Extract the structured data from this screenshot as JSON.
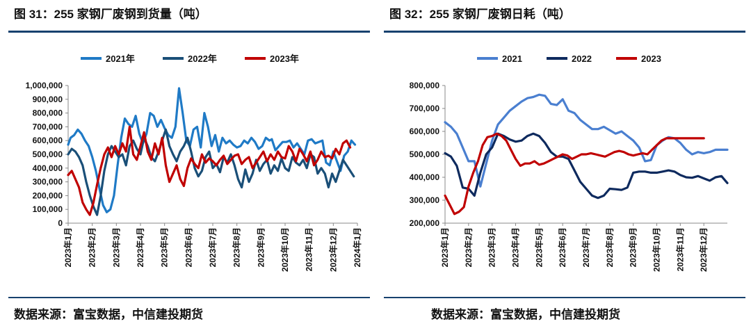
{
  "header": {
    "left_title": "图 31：255 家钢厂废钢到货量（吨）",
    "right_title": "图 32：255 家钢厂废钢日耗（吨）"
  },
  "footer": {
    "left_source": "数据来源：富宝数据，中信建投期货",
    "right_source": "数据来源：富宝数据，中信建投期货"
  },
  "charts": [
    {
      "type": "line",
      "title": "图 31：255 家钢厂废钢到货量（吨）",
      "ylim": [
        0,
        1000000
      ],
      "yticks": [
        0,
        100000,
        200000,
        300000,
        400000,
        500000,
        600000,
        700000,
        800000,
        900000,
        1000000
      ],
      "ytick_labels": [
        "0",
        "100,000",
        "200,000",
        "300,000",
        "400,000",
        "500,000",
        "600,000",
        "700,000",
        "800,000",
        "900,000",
        "1,000,000"
      ],
      "xlim": [
        0,
        12
      ],
      "x_tick_labels": [
        "2023年1月",
        "2023年2月",
        "2023年3月",
        "2023年4月",
        "2023年5月",
        "2023年6月",
        "2023年7月",
        "2023年8月",
        "2023年9月",
        "2023年10月",
        "2023年11月",
        "2023年12月",
        "2024年1月"
      ],
      "legend": "top",
      "series": [
        {
          "name": "2021年",
          "color": "#1f7ac6",
          "x": [
            0,
            0.1,
            0.25,
            0.4,
            0.55,
            0.7,
            0.85,
            1.0,
            1.15,
            1.3,
            1.45,
            1.6,
            1.75,
            1.9,
            2.05,
            2.2,
            2.35,
            2.5,
            2.65,
            2.8,
            2.95,
            3.1,
            3.25,
            3.4,
            3.55,
            3.7,
            3.85,
            4.0,
            4.15,
            4.3,
            4.45,
            4.6,
            4.75,
            4.9,
            5.05,
            5.2,
            5.35,
            5.5,
            5.65,
            5.8,
            5.95,
            6.1,
            6.25,
            6.4,
            6.55,
            6.7,
            6.85,
            7.0,
            7.15,
            7.3,
            7.45,
            7.6,
            7.75,
            7.9,
            8.05,
            8.2,
            8.35,
            8.45,
            8.6,
            8.75,
            8.9,
            9.05,
            9.2,
            9.35,
            9.5,
            9.65,
            9.8,
            9.95,
            10.1,
            10.25,
            10.4,
            10.55,
            10.7,
            10.85,
            11.0,
            11.15,
            11.3,
            11.45,
            11.6,
            11.75,
            11.9
          ],
          "values": [
            570000,
            620000,
            640000,
            680000,
            650000,
            600000,
            560000,
            480000,
            380000,
            250000,
            130000,
            80000,
            100000,
            200000,
            420000,
            620000,
            760000,
            720000,
            700000,
            780000,
            650000,
            580000,
            650000,
            800000,
            780000,
            700000,
            750000,
            690000,
            640000,
            620000,
            700000,
            980000,
            800000,
            600000,
            560000,
            680000,
            700000,
            550000,
            800000,
            700000,
            560000,
            640000,
            520000,
            620000,
            580000,
            600000,
            570000,
            550000,
            560000,
            600000,
            580000,
            620000,
            590000,
            540000,
            560000,
            620000,
            600000,
            610000,
            530000,
            560000,
            590000,
            590000,
            600000,
            550000,
            580000,
            540000,
            500000,
            600000,
            610000,
            580000,
            590000,
            600000,
            440000,
            420000,
            520000,
            450000,
            380000,
            490000,
            520000,
            600000,
            570000
          ]
        },
        {
          "name": "2022年",
          "color": "#1a4f78",
          "x": [
            0,
            0.15,
            0.3,
            0.45,
            0.6,
            0.75,
            0.9,
            1.05,
            1.2,
            1.35,
            1.5,
            1.65,
            1.8,
            1.95,
            2.1,
            2.25,
            2.4,
            2.55,
            2.7,
            2.85,
            3.0,
            3.15,
            3.3,
            3.45,
            3.6,
            3.75,
            3.9,
            4.05,
            4.2,
            4.35,
            4.5,
            4.65,
            4.8,
            4.95,
            5.1,
            5.25,
            5.4,
            5.55,
            5.7,
            5.85,
            6.0,
            6.15,
            6.3,
            6.45,
            6.6,
            6.75,
            6.9,
            7.05,
            7.2,
            7.35,
            7.5,
            7.65,
            7.8,
            7.95,
            8.1,
            8.25,
            8.4,
            8.55,
            8.7,
            8.85,
            9.0,
            9.15,
            9.3,
            9.45,
            9.6,
            9.75,
            9.9,
            10.05,
            10.2,
            10.35,
            10.5,
            10.65,
            10.8,
            10.95,
            11.1,
            11.25,
            11.4,
            11.55,
            11.7,
            11.85
          ],
          "values": [
            500000,
            540000,
            520000,
            480000,
            420000,
            300000,
            200000,
            120000,
            60000,
            200000,
            380000,
            500000,
            560000,
            520000,
            480000,
            500000,
            420000,
            560000,
            600000,
            540000,
            500000,
            620000,
            560000,
            480000,
            450000,
            520000,
            600000,
            680000,
            560000,
            500000,
            450000,
            520000,
            560000,
            620000,
            520000,
            400000,
            340000,
            380000,
            480000,
            520000,
            400000,
            430000,
            370000,
            480000,
            440000,
            500000,
            420000,
            320000,
            260000,
            390000,
            300000,
            360000,
            460000,
            380000,
            430000,
            460000,
            360000,
            420000,
            380000,
            470000,
            400000,
            380000,
            480000,
            440000,
            420000,
            460000,
            400000,
            500000,
            480000,
            360000,
            400000,
            360000,
            260000,
            360000,
            300000,
            380000,
            460000,
            420000,
            380000,
            340000
          ]
        },
        {
          "name": "2023年",
          "color": "#c00000",
          "x": [
            0,
            0.15,
            0.3,
            0.45,
            0.6,
            0.75,
            0.9,
            1.05,
            1.2,
            1.35,
            1.5,
            1.65,
            1.8,
            1.95,
            2.1,
            2.25,
            2.4,
            2.55,
            2.7,
            2.85,
            3.0,
            3.15,
            3.3,
            3.45,
            3.6,
            3.75,
            3.9,
            4.05,
            4.2,
            4.35,
            4.5,
            4.65,
            4.8,
            4.95,
            5.1,
            5.25,
            5.4,
            5.55,
            5.7,
            5.85,
            6.0,
            6.15,
            6.3,
            6.45,
            6.6,
            6.75,
            6.9,
            7.05,
            7.2,
            7.35,
            7.5,
            7.65,
            7.8,
            7.95,
            8.1,
            8.25,
            8.4,
            8.55,
            8.7,
            8.85,
            9.0,
            9.15,
            9.3,
            9.45,
            9.6,
            9.75,
            9.9,
            10.05,
            10.2,
            10.35,
            10.5,
            10.65,
            10.8,
            10.95,
            11.1,
            11.25,
            11.4,
            11.55,
            11.7
          ],
          "values": [
            350000,
            380000,
            320000,
            260000,
            150000,
            100000,
            60000,
            150000,
            280000,
            400000,
            500000,
            550000,
            480000,
            560000,
            500000,
            580000,
            520000,
            700000,
            500000,
            460000,
            560000,
            660000,
            520000,
            460000,
            580000,
            500000,
            620000,
            420000,
            300000,
            360000,
            420000,
            320000,
            270000,
            400000,
            470000,
            430000,
            400000,
            500000,
            440000,
            470000,
            450000,
            420000,
            460000,
            490000,
            430000,
            460000,
            490000,
            500000,
            430000,
            460000,
            480000,
            400000,
            440000,
            480000,
            520000,
            450000,
            500000,
            460000,
            520000,
            480000,
            470000,
            560000,
            520000,
            450000,
            540000,
            500000,
            450000,
            520000,
            420000,
            460000,
            520000,
            480000,
            490000,
            470000,
            540000,
            500000,
            580000,
            600000,
            550000
          ]
        }
      ]
    },
    {
      "type": "line",
      "title": "图 32：255 家钢厂废钢日耗（吨）",
      "ylim": [
        200000,
        800000
      ],
      "yticks": [
        200000,
        300000,
        400000,
        500000,
        600000,
        700000,
        800000
      ],
      "ytick_labels": [
        "200,000",
        "300,000",
        "400,000",
        "500,000",
        "600,000",
        "700,000",
        "800,000"
      ],
      "xlim": [
        0,
        12
      ],
      "x_tick_labels": [
        "2023年1月",
        "2023年2月",
        "2023年3月",
        "2023年4月",
        "2023年5月",
        "2023年6月",
        "2023年7月",
        "2023年8月",
        "2023年9月",
        "2023年10月",
        "2023年11月",
        "2023年12月"
      ],
      "legend": "top",
      "series": [
        {
          "name": "2021",
          "color": "#4a7fd0",
          "x": [
            0,
            0.25,
            0.5,
            0.75,
            1.0,
            1.25,
            1.5,
            1.75,
            2.0,
            2.25,
            2.5,
            2.75,
            3.0,
            3.25,
            3.5,
            3.75,
            4.0,
            4.25,
            4.5,
            4.75,
            5.0,
            5.25,
            5.5,
            5.75,
            6.0,
            6.25,
            6.5,
            6.75,
            7.0,
            7.25,
            7.5,
            7.75,
            8.0,
            8.25,
            8.5,
            8.75,
            9.0,
            9.25,
            9.5,
            9.75,
            10.0,
            10.25,
            10.5,
            10.75,
            11.0,
            11.25,
            11.5,
            11.75,
            12.0
          ],
          "values": [
            640000,
            620000,
            590000,
            530000,
            470000,
            470000,
            360000,
            460000,
            560000,
            630000,
            660000,
            690000,
            710000,
            730000,
            745000,
            750000,
            760000,
            755000,
            720000,
            715000,
            740000,
            690000,
            680000,
            650000,
            630000,
            610000,
            610000,
            620000,
            605000,
            590000,
            600000,
            580000,
            560000,
            530000,
            470000,
            475000,
            540000,
            560000,
            575000,
            570000,
            550000,
            520000,
            500000,
            510000,
            505000,
            510000,
            520000,
            520000,
            520000
          ]
        },
        {
          "name": "2022",
          "color": "#0e2a5e",
          "x": [
            0,
            0.25,
            0.5,
            0.75,
            1.0,
            1.25,
            1.5,
            1.75,
            2.0,
            2.25,
            2.5,
            2.75,
            3.0,
            3.25,
            3.5,
            3.75,
            4.0,
            4.25,
            4.5,
            4.75,
            5.0,
            5.25,
            5.5,
            5.75,
            6.0,
            6.25,
            6.5,
            6.75,
            7.0,
            7.25,
            7.5,
            7.75,
            8.0,
            8.25,
            8.5,
            8.75,
            9.0,
            9.25,
            9.5,
            9.75,
            10.0,
            10.25,
            10.5,
            10.75,
            11.0,
            11.25,
            11.5,
            11.75,
            12.0
          ],
          "values": [
            505000,
            490000,
            450000,
            355000,
            350000,
            320000,
            420000,
            500000,
            530000,
            590000,
            580000,
            565000,
            555000,
            560000,
            580000,
            590000,
            580000,
            550000,
            510000,
            490000,
            490000,
            480000,
            430000,
            380000,
            350000,
            320000,
            310000,
            320000,
            350000,
            348000,
            345000,
            355000,
            420000,
            425000,
            425000,
            420000,
            420000,
            425000,
            430000,
            425000,
            410000,
            400000,
            398000,
            405000,
            395000,
            385000,
            400000,
            405000,
            375000
          ]
        },
        {
          "name": "2023",
          "color": "#c00000",
          "x": [
            0,
            0.2,
            0.4,
            0.6,
            0.8,
            1.0,
            1.2,
            1.4,
            1.6,
            1.8,
            2.0,
            2.2,
            2.4,
            2.6,
            2.8,
            3.0,
            3.2,
            3.4,
            3.6,
            3.8,
            4.0,
            4.2,
            4.4,
            4.6,
            4.8,
            5.0,
            5.2,
            5.4,
            5.6,
            5.8,
            6.0,
            6.2,
            6.4,
            6.6,
            6.8,
            7.0,
            7.2,
            7.4,
            7.6,
            7.8,
            8.0,
            8.2,
            8.4,
            8.6,
            8.8,
            9.0,
            9.2,
            9.4,
            9.6,
            9.8,
            10.0,
            10.2,
            10.4,
            10.6,
            10.8,
            11.0
          ],
          "values": [
            320000,
            280000,
            240000,
            250000,
            270000,
            360000,
            420000,
            470000,
            540000,
            575000,
            580000,
            590000,
            580000,
            560000,
            520000,
            480000,
            450000,
            460000,
            460000,
            470000,
            455000,
            460000,
            470000,
            480000,
            490000,
            500000,
            495000,
            480000,
            490000,
            500000,
            500000,
            505000,
            500000,
            495000,
            490000,
            500000,
            510000,
            515000,
            510000,
            500000,
            495000,
            500000,
            505000,
            500000,
            520000,
            540000,
            560000,
            570000,
            570000,
            570000,
            570000,
            570000,
            570000,
            570000,
            570000,
            570000
          ]
        }
      ]
    }
  ]
}
